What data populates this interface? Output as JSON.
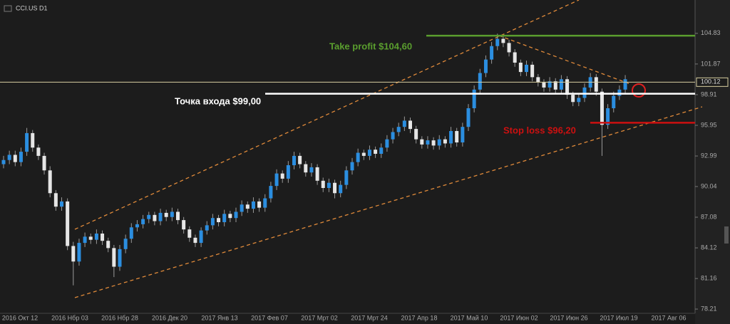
{
  "chart_data": {
    "type": "candlestick",
    "title": "CCI.US D1",
    "colors": {
      "up": "#2b8ee0",
      "down": "#e6e6e6",
      "wick": "#9a9a9a"
    },
    "ylim": [
      77.8,
      107.5
    ],
    "yticks": [
      104.83,
      101.87,
      98.91,
      95.95,
      92.99,
      90.04,
      87.08,
      84.12,
      81.16,
      78.21
    ],
    "x_labels": [
      "2016 Окт 12",
      "2016 Нбр 03",
      "2016 Нбр 28",
      "2016 Дек 20",
      "2017 Янв 13",
      "2017 Фев 07",
      "2017 Мрт 02",
      "2017 Мрт 24",
      "2017 Апр 18",
      "2017 Май 10",
      "2017 Июн 02",
      "2017 Июн 26",
      "2017 Июл 19",
      "2017 Авг 06"
    ],
    "open": [
      92.2,
      92.6,
      93.1,
      92.4,
      93.4,
      95.2,
      93.8,
      93.0,
      91.6,
      89.4,
      88.1,
      88.6,
      84.3,
      82.8,
      84.6,
      85.2,
      84.9,
      85.5,
      84.8,
      84.1,
      82.3,
      84.0,
      85.0,
      86.1,
      86.4,
      86.9,
      87.3,
      86.7,
      87.5,
      87.1,
      87.6,
      86.8,
      85.9,
      85.1,
      84.6,
      85.8,
      86.3,
      87.0,
      86.6,
      87.4,
      87.0,
      87.6,
      88.3,
      87.9,
      88.6,
      88.0,
      88.9,
      90.1,
      91.3,
      90.8,
      92.1,
      93.0,
      92.2,
      91.4,
      91.9,
      90.6,
      89.9,
      90.4,
      89.4,
      90.2,
      91.6,
      92.4,
      93.3,
      93.0,
      93.6,
      93.2,
      93.8,
      94.6,
      95.3,
      95.8,
      96.4,
      95.6,
      94.6,
      94.1,
      94.5,
      94.0,
      94.6,
      94.2,
      95.4,
      94.3,
      95.8,
      97.6,
      99.4,
      101.0,
      102.3,
      103.6,
      104.3,
      103.9,
      103.0,
      102.0,
      101.1,
      101.8,
      100.6,
      100.1,
      99.6,
      100.2,
      99.4,
      100.4,
      98.9,
      98.2,
      98.6,
      99.6,
      100.6,
      99.2,
      96.0,
      97.6,
      98.8,
      99.4
    ],
    "high": [
      93.0,
      93.5,
      93.5,
      93.8,
      95.7,
      95.5,
      94.1,
      93.3,
      92.0,
      89.7,
      89.0,
      88.9,
      84.7,
      85.0,
      85.6,
      85.5,
      85.9,
      85.8,
      85.1,
      84.4,
      84.4,
      85.4,
      86.5,
      86.8,
      87.3,
      87.6,
      87.6,
      87.9,
      87.8,
      88.0,
      87.9,
      87.1,
      86.2,
      85.4,
      86.1,
      86.7,
      87.4,
      87.3,
      87.8,
      87.7,
      88.0,
      88.7,
      88.6,
      89.0,
      88.9,
      89.3,
      90.5,
      91.7,
      91.6,
      92.5,
      93.4,
      93.3,
      92.5,
      92.3,
      92.2,
      90.9,
      90.8,
      90.7,
      90.6,
      92.0,
      92.8,
      93.7,
      93.6,
      94.0,
      93.9,
      94.2,
      95.0,
      95.7,
      96.2,
      96.8,
      96.7,
      95.9,
      94.9,
      94.9,
      94.8,
      95.0,
      94.9,
      95.8,
      95.7,
      96.2,
      98.0,
      99.8,
      101.4,
      102.7,
      104.0,
      104.8,
      104.6,
      104.2,
      103.3,
      102.3,
      102.2,
      102.1,
      100.9,
      100.4,
      100.6,
      100.5,
      100.8,
      100.7,
      99.2,
      99.0,
      100.0,
      101.0,
      100.9,
      99.5,
      98.0,
      99.2,
      99.8,
      100.8
    ],
    "low": [
      91.8,
      92.2,
      92.0,
      92.0,
      93.0,
      93.4,
      92.6,
      91.2,
      89.0,
      87.7,
      87.7,
      83.9,
      80.5,
      82.4,
      84.2,
      84.5,
      84.5,
      84.4,
      83.7,
      81.3,
      81.9,
      83.6,
      84.6,
      85.7,
      86.0,
      86.5,
      86.3,
      86.3,
      86.7,
      86.7,
      86.4,
      85.5,
      84.7,
      84.2,
      84.2,
      85.4,
      85.9,
      86.2,
      86.2,
      86.6,
      86.6,
      87.2,
      87.5,
      87.5,
      87.6,
      87.6,
      88.5,
      89.7,
      90.4,
      90.4,
      91.7,
      91.8,
      91.0,
      91.0,
      90.2,
      89.5,
      89.5,
      88.9,
      89.0,
      89.8,
      91.2,
      92.0,
      92.6,
      92.6,
      92.8,
      92.8,
      93.4,
      94.2,
      94.9,
      95.4,
      95.2,
      94.2,
      93.7,
      93.7,
      93.6,
      93.6,
      93.8,
      93.8,
      93.9,
      93.9,
      95.4,
      97.2,
      99.0,
      100.6,
      101.9,
      103.2,
      103.5,
      102.6,
      101.6,
      100.7,
      100.7,
      100.2,
      99.7,
      99.2,
      99.2,
      99.0,
      99.0,
      98.5,
      97.8,
      97.8,
      98.2,
      99.2,
      98.8,
      93.0,
      95.6,
      97.2,
      98.4,
      99.0
    ],
    "close": [
      92.6,
      93.1,
      92.4,
      93.4,
      95.2,
      93.8,
      93.0,
      91.6,
      89.4,
      88.1,
      88.6,
      84.3,
      82.8,
      84.6,
      85.2,
      84.9,
      85.5,
      84.8,
      84.1,
      82.3,
      84.0,
      85.0,
      86.1,
      86.4,
      86.9,
      87.3,
      86.7,
      87.5,
      87.1,
      87.6,
      86.8,
      85.9,
      85.1,
      84.6,
      85.8,
      86.3,
      87.0,
      86.6,
      87.4,
      87.0,
      87.6,
      88.3,
      87.9,
      88.6,
      88.0,
      88.9,
      90.1,
      91.3,
      90.8,
      92.1,
      93.0,
      92.2,
      91.4,
      91.9,
      90.6,
      89.9,
      90.4,
      89.4,
      90.2,
      91.6,
      92.4,
      93.3,
      93.0,
      93.6,
      93.2,
      93.8,
      94.6,
      95.3,
      95.8,
      96.4,
      95.6,
      94.6,
      94.1,
      94.5,
      94.0,
      94.6,
      94.2,
      95.4,
      94.3,
      95.8,
      97.6,
      99.4,
      101.0,
      102.3,
      103.6,
      104.3,
      103.9,
      103.0,
      102.0,
      101.1,
      101.8,
      100.6,
      100.1,
      99.6,
      100.2,
      99.4,
      100.4,
      98.9,
      98.2,
      98.6,
      99.6,
      100.6,
      99.2,
      96.0,
      97.6,
      98.8,
      99.4,
      100.4
    ],
    "current_price": {
      "value": 100.12,
      "color": "#d8cfa0"
    },
    "levels": [
      {
        "label": "Take profit $104,60",
        "value": 104.6,
        "color": "#5a9e2e"
      },
      {
        "label": "Точка входа $99,00",
        "value": 99.0,
        "color": "#ffffff"
      },
      {
        "label": "Stop loss $96,20",
        "value": 96.2,
        "color": "#cc1010"
      }
    ]
  }
}
